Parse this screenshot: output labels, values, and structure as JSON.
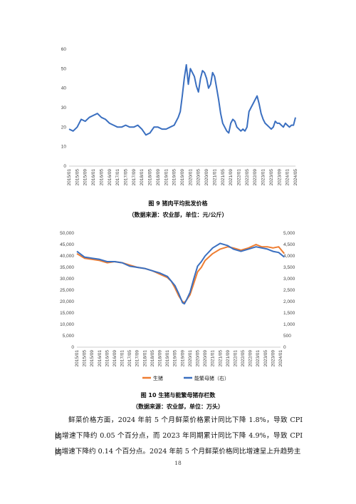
{
  "figure9": {
    "caption": "图 9  猪肉平均批发价格",
    "source": "（数据来源：农业部，单位：元/公斤）",
    "chart_data": {
      "type": "line",
      "ylim": [
        0,
        60
      ],
      "y_ticks": [
        "0",
        "10",
        "20",
        "30",
        "40",
        "50",
        "60"
      ],
      "x_ticks": [
        "2015/01",
        "2015/05",
        "2015/09",
        "2016/01",
        "2016/05",
        "2016/09",
        "2017/01",
        "2017/05",
        "2017/09",
        "2018/01",
        "2018/05",
        "2018/09",
        "2019/01",
        "2019/05",
        "2019/09",
        "2020/01",
        "2020/05",
        "2020/09",
        "2021/01",
        "2021/05",
        "2021/09",
        "2022/01",
        "2022/05",
        "2022/09",
        "2023/01",
        "2023/05",
        "2023/09",
        "2024/01",
        "2024/05"
      ],
      "grid": false,
      "series": [
        {
          "color": "#3a6fc0",
          "x": [
            "2015/01",
            "2015/03",
            "2015/05",
            "2015/07",
            "2015/09",
            "2015/11",
            "2016/01",
            "2016/03",
            "2016/05",
            "2016/07",
            "2016/09",
            "2016/11",
            "2017/01",
            "2017/03",
            "2017/05",
            "2017/07",
            "2017/09",
            "2017/11",
            "2018/01",
            "2018/03",
            "2018/05",
            "2018/07",
            "2018/09",
            "2018/11",
            "2019/01",
            "2019/03",
            "2019/05",
            "2019/07",
            "2019/08",
            "2019/09",
            "2019/10",
            "2019/11",
            "2019/12",
            "2020/01",
            "2020/02",
            "2020/03",
            "2020/04",
            "2020/05",
            "2020/06",
            "2020/07",
            "2020/08",
            "2020/09",
            "2020/10",
            "2020/11",
            "2020/12",
            "2021/01",
            "2021/02",
            "2021/03",
            "2021/04",
            "2021/05",
            "2021/06",
            "2021/07",
            "2021/08",
            "2021/09",
            "2021/10",
            "2021/11",
            "2021/12",
            "2022/01",
            "2022/02",
            "2022/03",
            "2022/04",
            "2022/05",
            "2022/06",
            "2022/07",
            "2022/08",
            "2022/09",
            "2022/10",
            "2022/11",
            "2022/12",
            "2023/01",
            "2023/02",
            "2023/03",
            "2023/04",
            "2023/05",
            "2023/06",
            "2023/07",
            "2023/08",
            "2023/09",
            "2023/10",
            "2023/11",
            "2023/12",
            "2024/01",
            "2024/02",
            "2024/03",
            "2024/04",
            "2024/05"
          ],
          "values": [
            19,
            18,
            20,
            24,
            23,
            25,
            26,
            27,
            25,
            24,
            22,
            21,
            20,
            20,
            21,
            20,
            20,
            21,
            19,
            16,
            17,
            20,
            20,
            19,
            19,
            20,
            21,
            25,
            28,
            36,
            45,
            52,
            42,
            50,
            48,
            46,
            41,
            38,
            45,
            49,
            48,
            45,
            40,
            42,
            48,
            46,
            40,
            34,
            27,
            22,
            20,
            18,
            17,
            22,
            24,
            23,
            20,
            19,
            18,
            19,
            18,
            20,
            28,
            30,
            32,
            34,
            36,
            32,
            27,
            24,
            22,
            21,
            20,
            19,
            20,
            23,
            22,
            22,
            21,
            20,
            22,
            21,
            20,
            21,
            21,
            25
          ]
        }
      ]
    }
  },
  "figure10": {
    "caption": "图 10  生猪与能繁母猪存栏数",
    "source": "（数据来源：农业部，单位：万头）",
    "chart_data": {
      "type": "line",
      "ylim": [
        0,
        50000
      ],
      "y2lim": [
        0,
        5000
      ],
      "y_ticks": [
        "0",
        "5,000",
        "10,000",
        "15,000",
        "20,000",
        "25,000",
        "30,000",
        "35,000",
        "40,000",
        "45,000",
        "50,000"
      ],
      "y2_ticks": [
        "0",
        "500",
        "1,000",
        "1,500",
        "2,000",
        "2,500",
        "3,000",
        "3,500",
        "4,000",
        "4,500",
        "5,000"
      ],
      "x_ticks": [
        "2015/01",
        "2015/05",
        "2015/09",
        "2016/01",
        "2016/05",
        "2016/09",
        "2017/01",
        "2017/05",
        "2017/09",
        "2018/01",
        "2018/05",
        "2018/09",
        "2019/01",
        "2019/05",
        "2019/09",
        "2020/01",
        "2020/05",
        "2020/09",
        "2021/01",
        "2021/05",
        "2021/09",
        "2022/01",
        "2022/05",
        "2022/09",
        "2023/01",
        "2023/05",
        "2023/09",
        "2024/01"
      ],
      "legend": "bottom-left",
      "series": [
        {
          "name": "生猪",
          "color": "#ee7d31",
          "axis": "left",
          "x": [
            "2015/01",
            "2015/05",
            "2015/09",
            "2016/01",
            "2016/05",
            "2016/09",
            "2017/01",
            "2017/05",
            "2017/09",
            "2018/01",
            "2018/05",
            "2018/09",
            "2019/01",
            "2019/03",
            "2019/05",
            "2019/07",
            "2019/09",
            "2019/10",
            "2019/11",
            "2020/01",
            "2020/03",
            "2020/05",
            "2020/07",
            "2020/09",
            "2021/01",
            "2021/05",
            "2021/09",
            "2021/12",
            "2022/04",
            "2022/08",
            "2022/12",
            "2023/03",
            "2023/06",
            "2023/09",
            "2023/12",
            "2024/03"
          ],
          "values": [
            41000,
            39000,
            38500,
            38000,
            37000,
            37500,
            37000,
            36000,
            35000,
            34500,
            33500,
            32000,
            30500,
            29000,
            26000,
            22500,
            20000,
            19500,
            20500,
            23000,
            28000,
            33000,
            35000,
            38000,
            41000,
            43000,
            44000,
            43500,
            42500,
            43500,
            45000,
            44000,
            44000,
            43500,
            44000,
            41000
          ]
        },
        {
          "name": "能繁母猪（右）",
          "color": "#3a6fc0",
          "axis": "right",
          "x": [
            "2015/01",
            "2015/05",
            "2015/09",
            "2016/01",
            "2016/05",
            "2016/09",
            "2017/01",
            "2017/05",
            "2017/09",
            "2018/01",
            "2018/05",
            "2018/09",
            "2019/01",
            "2019/03",
            "2019/05",
            "2019/07",
            "2019/09",
            "2019/10",
            "2019/11",
            "2020/01",
            "2020/03",
            "2020/05",
            "2020/07",
            "2020/09",
            "2021/01",
            "2021/05",
            "2021/09",
            "2021/12",
            "2022/04",
            "2022/08",
            "2022/12",
            "2023/03",
            "2023/06",
            "2023/09",
            "2023/12",
            "2024/03"
          ],
          "values": [
            4200,
            3950,
            3900,
            3850,
            3750,
            3750,
            3700,
            3550,
            3500,
            3450,
            3350,
            3250,
            3100,
            2900,
            2700,
            2350,
            1950,
            1900,
            2050,
            2400,
            3000,
            3550,
            3750,
            4000,
            4350,
            4550,
            4450,
            4300,
            4200,
            4300,
            4400,
            4350,
            4300,
            4200,
            4150,
            3950
          ]
        }
      ]
    }
  },
  "paragraph": {
    "line1": "鲜菜价格方面，2024 年前 5 个月鲜菜价格累计同比下降 1.8%，导致 CPI 同",
    "line2": "比增速下降约 0.05 个百分点，而 2023 年同期累计同比下降 4.9%，导致 CPI 同",
    "line3": "比增速下降约 0.14 个百分点。2024 年前 5 个月鲜菜价格同比增速呈上升趋势主"
  },
  "page_number": "18"
}
